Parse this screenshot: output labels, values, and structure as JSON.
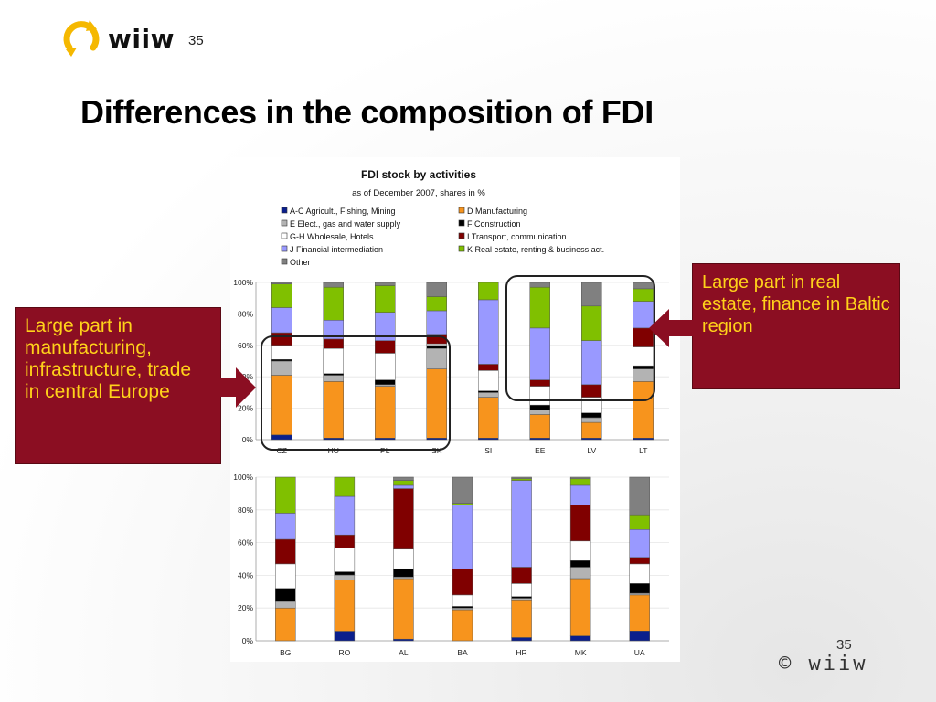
{
  "slide": {
    "number": "35",
    "title": "Differences in the composition of FDI",
    "brand": "wiiw",
    "footer_number": "35",
    "footer_copyright": "© wiiw"
  },
  "callouts": {
    "left": "Large part in manufacturing, infrastructure, trade in central Europe",
    "right": "Large part in real estate, finance in Baltic region"
  },
  "colors": {
    "callout_bg": "#8b0e22",
    "callout_text": "#ffd21a",
    "logo_yellow": "#f5b800"
  },
  "chart_data": {
    "type": "bar",
    "stacked": true,
    "title": "FDI stock by activities",
    "subtitle": "as of December 2007, shares in %",
    "ylim": [
      0,
      100
    ],
    "yticks": [
      "0%",
      "20%",
      "40%",
      "60%",
      "80%",
      "100%"
    ],
    "legend": [
      {
        "name": "A-C Agricult., Fishing, Mining",
        "color": "#0b1f8c"
      },
      {
        "name": "D  Manufacturing",
        "color": "#f7941d"
      },
      {
        "name": "E  Elect., gas and water supply",
        "color": "#b3b3b3"
      },
      {
        "name": "F  Construction",
        "color": "#000000"
      },
      {
        "name": "G-H Wholesale, Hotels",
        "color": "#ffffff"
      },
      {
        "name": "I   Transport, communication",
        "color": "#800000"
      },
      {
        "name": "J  Financial intermediation",
        "color": "#9999ff"
      },
      {
        "name": "K  Real estate, renting & business act.",
        "color": "#80c000"
      },
      {
        "name": "Other",
        "color": "#808080"
      }
    ],
    "panels": [
      {
        "categories": [
          "CZ",
          "HU",
          "PL",
          "SK",
          "SI",
          "EE",
          "LV",
          "LT"
        ],
        "stacks": [
          [
            3,
            38,
            9,
            1,
            9,
            8,
            16,
            15,
            1
          ],
          [
            1,
            36,
            4,
            1,
            16,
            6,
            12,
            21,
            3
          ],
          [
            1,
            33,
            1,
            3,
            17,
            8,
            18,
            17,
            2
          ],
          [
            1,
            44,
            13,
            2,
            1,
            6,
            15,
            9,
            9
          ],
          [
            1,
            26,
            3,
            1,
            13,
            4,
            41,
            11,
            0
          ],
          [
            1,
            15,
            3,
            3,
            12,
            4,
            33,
            26,
            3
          ],
          [
            1,
            10,
            3,
            3,
            10,
            8,
            28,
            22,
            15
          ],
          [
            1,
            36,
            8,
            2,
            12,
            12,
            17,
            8,
            4
          ]
        ]
      },
      {
        "categories": [
          "BG",
          "RO",
          "AL",
          "BA",
          "HR",
          "MK",
          "UA"
        ],
        "stacks": [
          [
            0,
            20,
            4,
            8,
            15,
            15,
            16,
            22,
            0
          ],
          [
            6,
            32,
            3,
            2,
            15,
            8,
            24,
            12,
            0
          ],
          [
            1,
            37,
            1,
            5,
            12,
            37,
            2,
            3,
            2
          ],
          [
            0,
            19,
            1,
            1,
            7,
            16,
            39,
            1,
            16
          ],
          [
            2,
            23,
            1,
            1,
            8,
            10,
            53,
            1,
            1
          ],
          [
            3,
            35,
            7,
            4,
            12,
            22,
            12,
            4,
            1
          ],
          [
            6,
            22,
            1,
            6,
            12,
            4,
            17,
            9,
            23
          ]
        ]
      }
    ]
  }
}
